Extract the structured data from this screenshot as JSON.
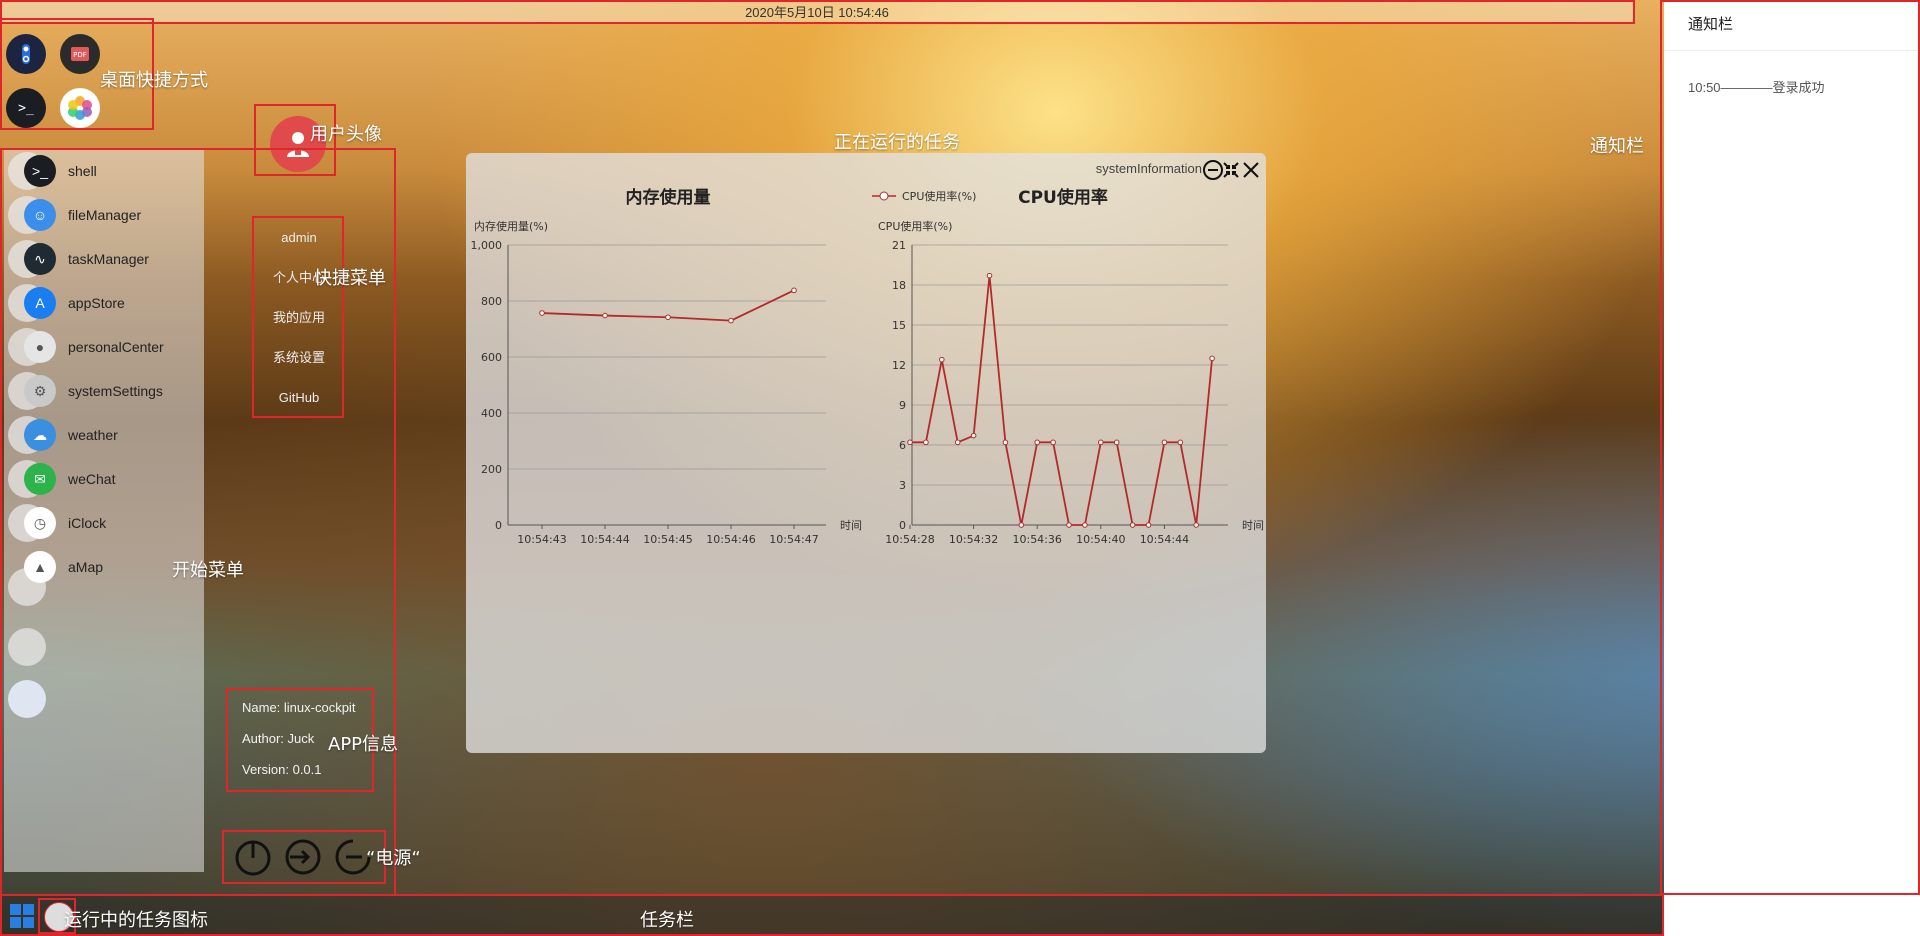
{
  "topbar": {
    "datetime": "2020年5月10日 10:54:46"
  },
  "desktop_shortcuts": [
    {
      "icon": "settings-toggle-icon"
    },
    {
      "icon": "pdf-icon",
      "label": "PDF"
    },
    {
      "icon": "terminal-icon",
      "label": ">_"
    },
    {
      "icon": "photos-icon"
    }
  ],
  "start_menu": {
    "apps": [
      {
        "label": "shell",
        "icon": "terminal-icon",
        "glyph": ">_"
      },
      {
        "label": "fileManager",
        "icon": "finder-icon",
        "glyph": "☺"
      },
      {
        "label": "taskManager",
        "icon": "activity-icon",
        "glyph": "∿"
      },
      {
        "label": "appStore",
        "icon": "appstore-icon",
        "glyph": "A"
      },
      {
        "label": "personalCenter",
        "icon": "person-icon",
        "glyph": "●"
      },
      {
        "label": "systemSettings",
        "icon": "gear-icon",
        "glyph": "⚙"
      },
      {
        "label": "weather",
        "icon": "weather-icon",
        "glyph": "☁"
      },
      {
        "label": "weChat",
        "icon": "wechat-icon",
        "glyph": "✉"
      },
      {
        "label": "iClock",
        "icon": "clock-icon",
        "glyph": "◷"
      },
      {
        "label": "aMap",
        "icon": "map-icon",
        "glyph": "▲"
      }
    ],
    "quick_menu": [
      "admin",
      "个人中心",
      "我的应用",
      "系统设置",
      "GitHub"
    ],
    "app_info": {
      "name": "Name: linux-cockpit",
      "author": "Author: Juck",
      "version": "Version: 0.0.1"
    }
  },
  "window": {
    "title": "systemInformation",
    "memory_chart_title": "内存使用量",
    "cpu_chart_title": "CPU使用率"
  },
  "chart_data": [
    {
      "type": "line",
      "title": "内存使用量",
      "ylabel": "内存使用量(%)",
      "xlabel": "时间",
      "ylim": [
        0,
        1000
      ],
      "yticks": [
        "0",
        "200",
        "400",
        "600",
        "800",
        "1,000"
      ],
      "x": [
        "10:54:43",
        "10:54:44",
        "10:54:45",
        "10:54:46",
        "10:54:47"
      ],
      "series": [
        {
          "values": [
            757,
            748,
            742,
            730,
            838
          ]
        }
      ],
      "color": "#b22a2a"
    },
    {
      "type": "line",
      "title": "CPU使用率",
      "ylabel": "CPU使用率(%)",
      "xlabel": "时间",
      "ylim": [
        0,
        21
      ],
      "yticks": [
        "0",
        "3",
        "6",
        "9",
        "12",
        "15",
        "18",
        "21"
      ],
      "xticks": [
        "10:54:28",
        "10:54:32",
        "10:54:36",
        "10:54:40",
        "10:54:44"
      ],
      "legend": "CPU使用率(%)",
      "series": [
        {
          "name": "CPU使用率(%)",
          "values": [
            6.2,
            6.2,
            12.4,
            6.2,
            6.7,
            18.7,
            6.2,
            0,
            6.2,
            6.2,
            0,
            0,
            6.2,
            6.2,
            0,
            0,
            6.2,
            6.2,
            0,
            12.5
          ]
        }
      ],
      "color": "#b22a2a"
    }
  ],
  "notification": {
    "header": "通知栏",
    "items": [
      "10:50————登录成功"
    ]
  },
  "taskbar": {
    "start_icon": "windows-icon",
    "running": [
      {
        "icon": "avatar-icon"
      }
    ]
  },
  "annotations": {
    "desktop": "桌面快捷方式",
    "avatar": "用户头像",
    "quick": "快捷菜单",
    "running": "正在运行的任务",
    "notif": "通知栏",
    "start": "开始菜单",
    "appinfo": "APP信息",
    "power": "“电源“",
    "running_icon": "运行中的任务图标",
    "taskbar": "任务栏"
  }
}
